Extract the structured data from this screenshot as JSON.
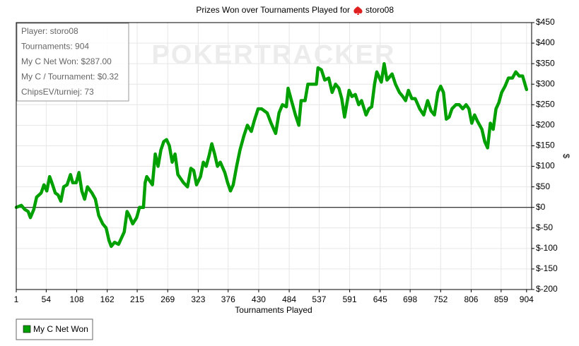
{
  "chart_data": {
    "type": "line",
    "title": "Prizes Won over Tournaments Played for",
    "player": "storo08",
    "watermark": "POKERTRACKER",
    "x_label": "Tournaments Played",
    "y_label": "$",
    "stats": [
      "Player: storo08",
      "Tournaments: 904",
      "My C Net Won: $287.00",
      "My C / Tournament: $0.32",
      "ChipsEV/turniej: 73"
    ],
    "legend": "bottom-left",
    "grid": true,
    "xlim": [
      1,
      913
    ],
    "ylim": [
      -200,
      450
    ],
    "xticks": [
      1,
      54,
      108,
      162,
      215,
      269,
      323,
      376,
      430,
      484,
      537,
      591,
      645,
      698,
      752,
      806,
      859,
      904
    ],
    "yticks": [
      {
        "value": -200,
        "label": "$-200"
      },
      {
        "value": -150,
        "label": "$-150"
      },
      {
        "value": -100,
        "label": "$-100"
      },
      {
        "value": -50,
        "label": "$-50"
      },
      {
        "value": 0,
        "label": "$0"
      },
      {
        "value": 50,
        "label": "$50"
      },
      {
        "value": 100,
        "label": "$100"
      },
      {
        "value": 150,
        "label": "$150"
      },
      {
        "value": 200,
        "label": "$200"
      },
      {
        "value": 250,
        "label": "$250"
      },
      {
        "value": 300,
        "label": "$300"
      },
      {
        "value": 350,
        "label": "$350"
      },
      {
        "value": 400,
        "label": "$400"
      },
      {
        "value": 450,
        "label": "$450"
      }
    ],
    "x": [
      1,
      10,
      16,
      22,
      26,
      32,
      37,
      45,
      50,
      55,
      60,
      64,
      70,
      75,
      80,
      85,
      91,
      97,
      101,
      107,
      112,
      117,
      122,
      127,
      135,
      141,
      147,
      154,
      160,
      165,
      169,
      175,
      182,
      187,
      192,
      197,
      201,
      207,
      214,
      219,
      226,
      229,
      232,
      237,
      242,
      247,
      252,
      257,
      262,
      267,
      272,
      277,
      282,
      287,
      292,
      297,
      304,
      310,
      315,
      320,
      327,
      332,
      337,
      342,
      347,
      352,
      357,
      362,
      370,
      375,
      380,
      385,
      391,
      397,
      404,
      410,
      417,
      422,
      429,
      435,
      445,
      452,
      460,
      466,
      472,
      479,
      482,
      487,
      495,
      501,
      505,
      512,
      517,
      525,
      532,
      535,
      541,
      547,
      554,
      560,
      566,
      572,
      577,
      582,
      590,
      595,
      601,
      607,
      612,
      620,
      625,
      630,
      635,
      639,
      647,
      652,
      657,
      666,
      672,
      679,
      685,
      690,
      695,
      701,
      707,
      715,
      722,
      729,
      735,
      741,
      747,
      752,
      757,
      762,
      767,
      772,
      779,
      785,
      791,
      797,
      802,
      807,
      812,
      817,
      825,
      830,
      835,
      840,
      845,
      850,
      855,
      860,
      866,
      872,
      879,
      885,
      891,
      897,
      904
    ],
    "series": [
      {
        "name": "My C Net Won",
        "color": "#00a000",
        "values": [
          0,
          5,
          -5,
          -10,
          -25,
          -5,
          25,
          35,
          55,
          40,
          75,
          60,
          35,
          30,
          15,
          50,
          55,
          80,
          60,
          60,
          85,
          40,
          20,
          50,
          35,
          20,
          -20,
          -40,
          -50,
          -80,
          -95,
          -85,
          -90,
          -75,
          -60,
          -10,
          -20,
          -40,
          -25,
          0,
          0,
          60,
          75,
          65,
          55,
          130,
          100,
          140,
          160,
          165,
          150,
          110,
          130,
          80,
          70,
          60,
          50,
          95,
          90,
          55,
          75,
          110,
          100,
          125,
          155,
          130,
          100,
          110,
          85,
          60,
          40,
          55,
          100,
          140,
          175,
          200,
          185,
          210,
          240,
          240,
          230,
          205,
          180,
          230,
          250,
          245,
          290,
          265,
          225,
          200,
          260,
          260,
          300,
          300,
          300,
          340,
          335,
          310,
          315,
          280,
          300,
          290,
          265,
          220,
          285,
          270,
          275,
          250,
          260,
          225,
          240,
          245,
          300,
          330,
          305,
          350,
          310,
          325,
          300,
          280,
          270,
          260,
          285,
          265,
          265,
          240,
          225,
          260,
          235,
          225,
          280,
          295,
          280,
          215,
          220,
          240,
          250,
          250,
          240,
          250,
          240,
          205,
          225,
          210,
          190,
          160,
          145,
          205,
          190,
          240,
          255,
          280,
          295,
          315,
          315,
          330,
          320,
          320,
          287
        ]
      }
    ]
  }
}
